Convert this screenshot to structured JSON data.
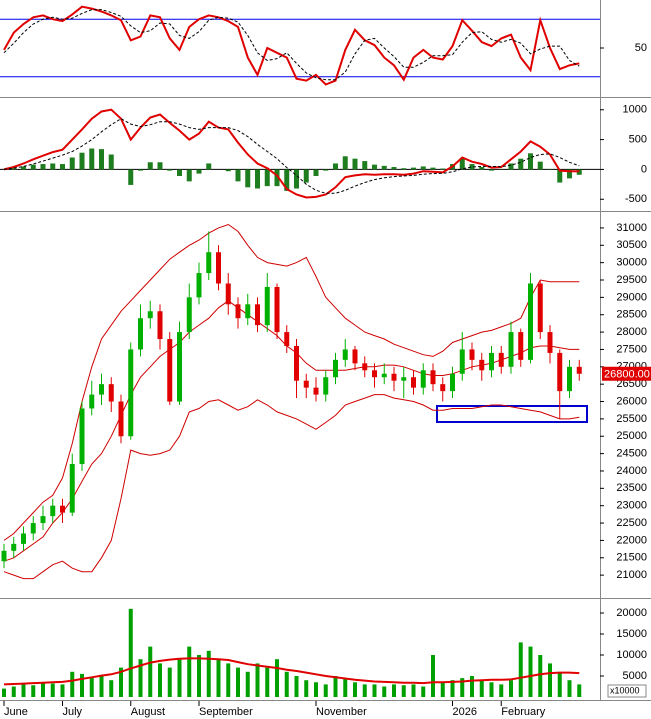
{
  "chart_data": [
    {
      "type": "line",
      "ylim": [
        0,
        100
      ],
      "yticks": [
        50
      ],
      "hlines": [
        20,
        80
      ],
      "hline_color": "#0000ee",
      "series": [
        {
          "color": "#e00000",
          "dash": false,
          "values": [
            48,
            66,
            75,
            82,
            84,
            80,
            78,
            85,
            93,
            91,
            88,
            84,
            79,
            58,
            62,
            84,
            82,
            60,
            48,
            72,
            80,
            84,
            82,
            78,
            72,
            40,
            22,
            50,
            45,
            40,
            18,
            16,
            22,
            12,
            16,
            48,
            69,
            58,
            53,
            40,
            32,
            17,
            40,
            48,
            40,
            38,
            52,
            79,
            68,
            56,
            52,
            60,
            64,
            40,
            27,
            79,
            50,
            28,
            32,
            34
          ]
        },
        {
          "color": "#000000",
          "dash": true,
          "values": [
            45,
            55,
            66,
            75,
            80,
            82,
            80,
            81,
            86,
            90,
            90,
            87,
            83,
            73,
            66,
            68,
            76,
            75,
            63,
            60,
            67,
            79,
            82,
            81,
            77,
            63,
            45,
            37,
            39,
            45,
            34,
            24,
            19,
            17,
            17,
            25,
            44,
            58,
            60,
            50,
            41,
            30,
            30,
            35,
            42,
            42,
            43,
            56,
            66,
            67,
            59,
            56,
            59,
            55,
            44,
            49,
            52,
            52,
            37,
            31
          ]
        }
      ]
    },
    {
      "type": "macd",
      "ylim": [
        -680,
        1180
      ],
      "yticks": [
        -500,
        0,
        500,
        1000
      ],
      "histogram": {
        "color": "#1e7d1e",
        "values": [
          0,
          20,
          50,
          80,
          90,
          100,
          90,
          200,
          280,
          350,
          340,
          250,
          0,
          -260,
          -20,
          120,
          120,
          -20,
          -110,
          -200,
          -70,
          100,
          0,
          -30,
          -200,
          -300,
          -320,
          -280,
          -280,
          -360,
          -320,
          -220,
          -110,
          -20,
          100,
          220,
          180,
          140,
          80,
          60,
          40,
          20,
          30,
          50,
          30,
          15,
          90,
          190,
          90,
          40,
          -20,
          -5,
          100,
          180,
          270,
          130,
          -10,
          -220,
          -150,
          -90
        ]
      },
      "series": [
        {
          "color": "#e00000",
          "dash": false,
          "values": [
            0,
            40,
            100,
            170,
            230,
            290,
            330,
            500,
            670,
            850,
            970,
            1000,
            850,
            500,
            700,
            870,
            920,
            780,
            650,
            500,
            600,
            800,
            700,
            670,
            450,
            250,
            100,
            20,
            -100,
            -330,
            -420,
            -470,
            -460,
            -420,
            -300,
            -130,
            -100,
            -80,
            -90,
            -80,
            -80,
            -90,
            -70,
            -30,
            -40,
            -50,
            50,
            200,
            130,
            90,
            30,
            40,
            170,
            300,
            470,
            380,
            250,
            -20,
            -30,
            -30
          ]
        },
        {
          "color": "#000000",
          "dash": true,
          "values": [
            0,
            20,
            50,
            90,
            140,
            190,
            240,
            300,
            390,
            500,
            630,
            750,
            850,
            760,
            720,
            750,
            800,
            800,
            760,
            700,
            670,
            700,
            700,
            700,
            650,
            550,
            420,
            300,
            180,
            30,
            -100,
            -250,
            -350,
            -400,
            -400,
            -350,
            -280,
            -220,
            -170,
            -140,
            -120,
            -110,
            -100,
            -80,
            -70,
            -65,
            -40,
            10,
            40,
            50,
            50,
            45,
            70,
            120,
            200,
            250,
            260,
            200,
            120,
            60
          ]
        }
      ]
    },
    {
      "type": "candlestick",
      "ylim": [
        20370,
        31430
      ],
      "yticks": [
        21000,
        21500,
        22000,
        22500,
        23000,
        23500,
        24000,
        24500,
        25000,
        25500,
        26000,
        26500,
        27000,
        27500,
        28000,
        28500,
        29000,
        29500,
        30000,
        30500,
        31000
      ],
      "up_color": "#00b000",
      "down_color": "#e00000",
      "open": [
        21400,
        21700,
        21900,
        22200,
        22500,
        22700,
        23000,
        22800,
        24200,
        25800,
        26200,
        26500,
        26000,
        25000,
        27500,
        28400,
        28600,
        27800,
        26000,
        28000,
        29000,
        29700,
        30300,
        29400,
        28800,
        28400,
        28800,
        28200,
        29300,
        28000,
        27600,
        26600,
        26400,
        26200,
        26700,
        27200,
        27500,
        27100,
        26900,
        26700,
        26800,
        26600,
        26700,
        26400,
        26900,
        26500,
        26300,
        26800,
        27500,
        27200,
        26900,
        27400,
        27000,
        28000,
        27200,
        29400,
        28000,
        27400,
        26300,
        27000
      ],
      "high": [
        21900,
        22100,
        22400,
        22700,
        23000,
        23200,
        23200,
        24500,
        26000,
        26600,
        26800,
        26700,
        26200,
        27700,
        28800,
        28900,
        28800,
        28000,
        28300,
        29400,
        30000,
        30900,
        30500,
        29700,
        29000,
        29100,
        29000,
        29700,
        29400,
        28200,
        27800,
        26800,
        26700,
        26900,
        27400,
        27800,
        27600,
        27300,
        27100,
        27100,
        27000,
        27000,
        26900,
        27100,
        27100,
        26700,
        27000,
        28000,
        27700,
        27400,
        27600,
        27600,
        28300,
        28100,
        29700,
        29500,
        28200,
        27500,
        27200,
        27200
      ],
      "low": [
        21200,
        21500,
        21700,
        22000,
        22300,
        22500,
        22500,
        22700,
        24000,
        25600,
        25900,
        25700,
        24800,
        24900,
        27300,
        28100,
        27500,
        25900,
        25900,
        27800,
        28800,
        29500,
        29200,
        28500,
        28100,
        28200,
        28000,
        28000,
        27800,
        27400,
        26100,
        26100,
        26000,
        26000,
        26500,
        27000,
        26900,
        26700,
        26400,
        26500,
        26300,
        26100,
        26200,
        26200,
        26300,
        26000,
        26100,
        26600,
        26900,
        26600,
        26700,
        26800,
        26800,
        27000,
        27100,
        27800,
        27100,
        25500,
        26100,
        26600
      ],
      "close": [
        21700,
        21900,
        22200,
        22500,
        22700,
        23000,
        22800,
        24200,
        25800,
        26200,
        26500,
        26000,
        25000,
        27500,
        28400,
        28600,
        27800,
        26000,
        28000,
        29000,
        29700,
        30300,
        29400,
        28800,
        28400,
        28800,
        28200,
        29300,
        28000,
        27600,
        26600,
        26400,
        26200,
        26700,
        27200,
        27500,
        27100,
        26900,
        26700,
        26800,
        26600,
        26700,
        26400,
        26900,
        26500,
        26300,
        26800,
        27500,
        27200,
        26900,
        27400,
        27000,
        28000,
        27200,
        29400,
        28000,
        27400,
        26300,
        27000,
        26800
      ],
      "bands": [
        {
          "color": "#d00000",
          "values": [
            22000,
            22200,
            22500,
            22800,
            23100,
            23300,
            23800,
            24800,
            26000,
            27000,
            27800,
            28200,
            28600,
            28900,
            29200,
            29500,
            29800,
            30100,
            30300,
            30500,
            30650,
            30850,
            31000,
            31100,
            30900,
            30500,
            30150,
            30000,
            29950,
            29900,
            30000,
            30150,
            29600,
            29000,
            28700,
            28400,
            28200,
            28000,
            27900,
            27800,
            27650,
            27550,
            27450,
            27350,
            27300,
            27450,
            27700,
            27800,
            27900,
            28000,
            28050,
            28150,
            28250,
            28400,
            29000,
            29500,
            29450,
            29450,
            29450,
            29450
          ]
        },
        {
          "color": "#d00000",
          "values": [
            21400,
            21500,
            21700,
            21900,
            22100,
            22500,
            22800,
            23200,
            23700,
            24200,
            24500,
            25000,
            25600,
            26200,
            26700,
            27000,
            27300,
            27500,
            27700,
            28000,
            28200,
            28400,
            28700,
            28900,
            28700,
            28500,
            28300,
            28100,
            27900,
            27600,
            27400,
            27100,
            26900,
            26900,
            26900,
            26900,
            26950,
            27000,
            27000,
            27050,
            27050,
            27000,
            26900,
            26800,
            26750,
            26750,
            26800,
            26900,
            27000,
            27050,
            27100,
            27200,
            27300,
            27400,
            27550,
            27600,
            27600,
            27550,
            27500,
            27500
          ]
        },
        {
          "color": "#d00000",
          "values": [
            21100,
            21000,
            20900,
            20900,
            21100,
            21300,
            21400,
            21200,
            21100,
            21100,
            21500,
            22000,
            23200,
            24600,
            24500,
            24450,
            24500,
            24600,
            25000,
            25700,
            25800,
            26000,
            26050,
            25900,
            25750,
            25850,
            26050,
            25900,
            25700,
            25600,
            25500,
            25350,
            25200,
            25400,
            25600,
            25900,
            26000,
            26100,
            26200,
            26200,
            26100,
            26050,
            26000,
            25900,
            25750,
            25750,
            25800,
            25800,
            25800,
            25850,
            25900,
            25900,
            25850,
            25800,
            25750,
            25700,
            25600,
            25500,
            25500,
            25550
          ]
        }
      ],
      "last_price": {
        "value": 26800,
        "label": "26800.00"
      }
    },
    {
      "type": "bar",
      "ylim": [
        0,
        23100
      ],
      "yticks": [
        5000,
        10000,
        15000,
        20000
      ],
      "unit_label": "x10000",
      "color": "#00a000",
      "categories": [
        "June",
        null,
        null,
        null,
        null,
        null,
        "July",
        null,
        null,
        null,
        null,
        null,
        null,
        "August",
        null,
        null,
        null,
        null,
        null,
        null,
        "September",
        null,
        null,
        null,
        null,
        null,
        null,
        null,
        null,
        null,
        null,
        null,
        "November",
        null,
        null,
        null,
        null,
        null,
        null,
        null,
        null,
        null,
        null,
        null,
        null,
        null,
        "2026",
        null,
        null,
        null,
        null,
        "February",
        null,
        null,
        null,
        null,
        null,
        null,
        null,
        null
      ],
      "values": [
        2000,
        2500,
        3000,
        2800,
        3500,
        3200,
        3000,
        6000,
        5500,
        4500,
        5000,
        4000,
        7000,
        21000,
        9000,
        12000,
        8000,
        7000,
        9000,
        12000,
        10000,
        11000,
        9000,
        8000,
        7000,
        6000,
        8000,
        7000,
        9000,
        6000,
        5000,
        4000,
        3500,
        3000,
        5000,
        4500,
        3500,
        3000,
        3000,
        2500,
        3000,
        2800,
        3000,
        2500,
        10000,
        3500,
        4000,
        4500,
        5000,
        4000,
        3500,
        3000,
        4000,
        13000,
        12000,
        10000,
        8000,
        6000,
        4000,
        3000
      ],
      "ma": {
        "color": "#e00000",
        "values": [
          3000,
          3100,
          3200,
          3300,
          3400,
          3500,
          3600,
          3900,
          4300,
          4700,
          5100,
          5400,
          6000,
          6800,
          7500,
          8200,
          8600,
          8900,
          9100,
          9200,
          9200,
          9100,
          9000,
          8800,
          8300,
          7800,
          7500,
          7200,
          6900,
          6500,
          6200,
          5800,
          5400,
          5000,
          4700,
          4400,
          4100,
          3900,
          3700,
          3600,
          3500,
          3400,
          3400,
          3300,
          3500,
          3500,
          3600,
          3700,
          3900,
          4000,
          4100,
          4100,
          4200,
          4600,
          5000,
          5400,
          5700,
          5800,
          5800,
          5700
        ]
      }
    }
  ]
}
